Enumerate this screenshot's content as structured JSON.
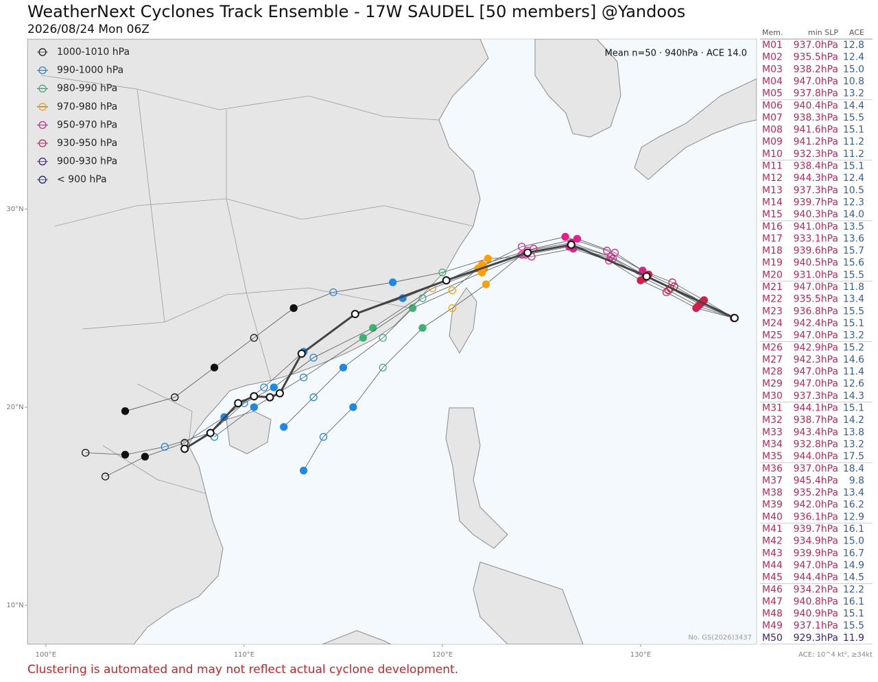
{
  "title": "WeatherNext Cyclones Track Ensemble - 17W SAUDEL [50 members] @Yandoos",
  "subtitle": "2026/08/24 Mon 06Z",
  "map": {
    "type": "map",
    "xlim": [
      99.07,
      135.85
    ],
    "ylim": [
      8.03,
      38.58
    ],
    "xticks": [
      {
        "value": 100,
        "label": "100°E"
      },
      {
        "value": 110,
        "label": "110°E"
      },
      {
        "value": 120,
        "label": "120°E"
      },
      {
        "value": 130,
        "label": "130°E"
      }
    ],
    "yticks": [
      {
        "value": 30,
        "label": "30°N"
      },
      {
        "value": 20,
        "label": "20°N"
      },
      {
        "value": 10,
        "label": "10°N"
      }
    ],
    "legend": [
      {
        "label": "1000-1010 hPa",
        "color": "#111111"
      },
      {
        "label": "990-1000 hPa",
        "color": "#1e88e5"
      },
      {
        "label": "980-990 hPa",
        "color": "#3cb371"
      },
      {
        "label": "970-980 hPa",
        "color": "#ffa000"
      },
      {
        "label": "950-970 hPa",
        "color": "#e91e8c"
      },
      {
        "label": "930-950 hPa",
        "color": "#d0204a"
      },
      {
        "label": "900-930 hPa",
        "color": "#3f1a8a"
      },
      {
        "label": "< 900 hPa",
        "color": "#1a237e"
      }
    ],
    "mean_label": "Mean n=50 · 940hPa · ACE 14.0",
    "watermark": "No. GS(2026)3437",
    "tracks": [
      {
        "lon": [
          134.7,
          133.0,
          131.5,
          130.3,
          128.5,
          126.5,
          124.3,
          122.0,
          120.2,
          118.0,
          115.6,
          113.0,
          111.0,
          109.0,
          107.0,
          105.0,
          103.0
        ],
        "lat": [
          24.5,
          25.2,
          26.0,
          26.6,
          27.6,
          28.3,
          27.9,
          27.2,
          26.4,
          25.5,
          24.7,
          22.8,
          21.0,
          19.5,
          18.2,
          17.5,
          16.5
        ],
        "colors": [
          "#e91e8c",
          "#d0204a",
          "#d0204a",
          "#d0204a",
          "#e91e8c",
          "#e91e8c",
          "#e91e8c",
          "#ffa000",
          "#3cb371",
          "#1e88e5",
          "#1e88e5",
          "#1e88e5",
          "#1e88e5",
          "#1e88e5",
          "#111111",
          "#111111",
          "#111111"
        ]
      },
      {
        "lon": [
          134.7,
          133.2,
          131.6,
          130.1,
          128.3,
          126.2,
          124.0,
          121.8,
          120.5,
          118.5,
          117.0,
          115.0,
          113.5,
          112.0
        ],
        "lat": [
          24.5,
          25.4,
          26.3,
          26.9,
          27.9,
          28.6,
          28.1,
          27.0,
          25.9,
          25.0,
          23.5,
          22.0,
          20.5,
          19.0
        ],
        "colors": [
          "#e91e8c",
          "#d0204a",
          "#d0204a",
          "#e91e8c",
          "#e91e8c",
          "#e91e8c",
          "#e91e8c",
          "#ffa000",
          "#ffa000",
          "#3cb371",
          "#3cb371",
          "#1e88e5",
          "#1e88e5",
          "#1e88e5"
        ]
      },
      {
        "lon": [
          134.7,
          132.8,
          131.3,
          130.0,
          128.4,
          126.6,
          124.5,
          122.3,
          120.0,
          117.5,
          114.5,
          112.5,
          110.5,
          108.5,
          106.5,
          104.0
        ],
        "lat": [
          24.5,
          25.0,
          25.8,
          26.4,
          27.4,
          28.0,
          27.6,
          27.5,
          26.8,
          26.3,
          25.8,
          25.0,
          23.5,
          22.0,
          20.5,
          19.8
        ],
        "colors": [
          "#e91e8c",
          "#d0204a",
          "#d0204a",
          "#d0204a",
          "#e91e8c",
          "#e91e8c",
          "#e91e8c",
          "#ffa000",
          "#3cb371",
          "#1e88e5",
          "#1e88e5",
          "#111111",
          "#111111",
          "#111111",
          "#111111",
          "#111111"
        ]
      },
      {
        "lon": [
          134.7,
          133.1,
          131.7,
          130.4,
          128.7,
          126.8,
          124.6,
          122.1,
          119.5,
          116.5,
          113.5,
          111.5,
          110.0,
          108.3,
          106.0,
          104.0,
          102.0
        ],
        "lat": [
          24.5,
          25.3,
          26.1,
          26.7,
          27.8,
          28.5,
          28.0,
          27.0,
          26.0,
          24.0,
          22.5,
          21.0,
          20.2,
          18.7,
          18.0,
          17.6,
          17.7
        ],
        "colors": [
          "#3f1a8a",
          "#d0204a",
          "#d0204a",
          "#d0204a",
          "#e91e8c",
          "#e91e8c",
          "#e91e8c",
          "#ffa000",
          "#ffa000",
          "#3cb371",
          "#1e88e5",
          "#1e88e5",
          "#1e88e5",
          "#1e88e5",
          "#1e88e5",
          "#111111",
          "#111111"
        ]
      },
      {
        "lon": [
          134.7,
          132.9,
          131.4,
          130.2,
          128.6,
          126.4,
          124.2,
          122.0,
          119.0,
          116.0,
          113.0,
          110.5,
          108.5
        ],
        "lat": [
          24.5,
          25.1,
          25.9,
          26.5,
          27.5,
          28.1,
          27.7,
          26.8,
          25.5,
          23.5,
          21.5,
          20.0,
          18.5
        ],
        "colors": [
          "#e91e8c",
          "#d0204a",
          "#d0204a",
          "#d0204a",
          "#e91e8c",
          "#e91e8c",
          "#e91e8c",
          "#ffa000",
          "#3cb371",
          "#3cb371",
          "#1e88e5",
          "#1e88e5",
          "#1e88e5"
        ]
      },
      {
        "lon": [
          134.7,
          133.0,
          131.5,
          130.3,
          128.5,
          126.5,
          124.0,
          122.2,
          120.5,
          119.0,
          117.0,
          115.5,
          114.0,
          113.0
        ],
        "lat": [
          24.5,
          25.2,
          26.0,
          26.6,
          27.6,
          28.2,
          27.7,
          26.2,
          25.0,
          24.0,
          22.0,
          20.0,
          18.5,
          16.8
        ],
        "colors": [
          "#e91e8c",
          "#d0204a",
          "#d0204a",
          "#d0204a",
          "#e91e8c",
          "#e91e8c",
          "#e91e8c",
          "#ffa000",
          "#ffa000",
          "#3cb371",
          "#3cb371",
          "#1e88e5",
          "#1e88e5",
          "#1e88e5"
        ]
      }
    ],
    "mean_track": {
      "lon": [
        134.74,
        130.3,
        126.5,
        124.3,
        120.2,
        115.6,
        112.9,
        111.8,
        111.3,
        110.5,
        109.7,
        108.3,
        107.0
      ],
      "lat": [
        24.5,
        26.6,
        28.2,
        27.8,
        26.4,
        24.7,
        22.7,
        20.7,
        20.5,
        20.55,
        20.2,
        18.7,
        17.9
      ]
    }
  },
  "table": {
    "headers": [
      "Mem.",
      "min SLP",
      "ACE"
    ],
    "color": "#c0245a",
    "ace_color": "#2f5f9e",
    "rows": [
      {
        "member": "M01",
        "min_slp": "937.0hPa",
        "ace": "12.8"
      },
      {
        "member": "M02",
        "min_slp": "935.5hPa",
        "ace": "12.4"
      },
      {
        "member": "M03",
        "min_slp": "938.2hPa",
        "ace": "15.0"
      },
      {
        "member": "M04",
        "min_slp": "947.0hPa",
        "ace": "10.8"
      },
      {
        "member": "M05",
        "min_slp": "937.8hPa",
        "ace": "13.2"
      },
      {
        "member": "M06",
        "min_slp": "940.4hPa",
        "ace": "14.4"
      },
      {
        "member": "M07",
        "min_slp": "938.3hPa",
        "ace": "15.5"
      },
      {
        "member": "M08",
        "min_slp": "941.6hPa",
        "ace": "15.1"
      },
      {
        "member": "M09",
        "min_slp": "941.2hPa",
        "ace": "11.2"
      },
      {
        "member": "M10",
        "min_slp": "932.3hPa",
        "ace": "11.2"
      },
      {
        "member": "M11",
        "min_slp": "938.4hPa",
        "ace": "15.1"
      },
      {
        "member": "M12",
        "min_slp": "944.3hPa",
        "ace": "12.4"
      },
      {
        "member": "M13",
        "min_slp": "937.3hPa",
        "ace": "10.5"
      },
      {
        "member": "M14",
        "min_slp": "939.7hPa",
        "ace": "12.3"
      },
      {
        "member": "M15",
        "min_slp": "940.3hPa",
        "ace": "14.0"
      },
      {
        "member": "M16",
        "min_slp": "941.0hPa",
        "ace": "13.5"
      },
      {
        "member": "M17",
        "min_slp": "933.1hPa",
        "ace": "13.6"
      },
      {
        "member": "M18",
        "min_slp": "939.6hPa",
        "ace": "15.7"
      },
      {
        "member": "M19",
        "min_slp": "940.5hPa",
        "ace": "15.6"
      },
      {
        "member": "M20",
        "min_slp": "931.0hPa",
        "ace": "15.5"
      },
      {
        "member": "M21",
        "min_slp": "947.0hPa",
        "ace": "11.8"
      },
      {
        "member": "M22",
        "min_slp": "935.5hPa",
        "ace": "13.4"
      },
      {
        "member": "M23",
        "min_slp": "936.8hPa",
        "ace": "15.5"
      },
      {
        "member": "M24",
        "min_slp": "942.4hPa",
        "ace": "15.1"
      },
      {
        "member": "M25",
        "min_slp": "947.0hPa",
        "ace": "13.2"
      },
      {
        "member": "M26",
        "min_slp": "942.9hPa",
        "ace": "15.2"
      },
      {
        "member": "M27",
        "min_slp": "942.3hPa",
        "ace": "14.6"
      },
      {
        "member": "M28",
        "min_slp": "947.0hPa",
        "ace": "11.4"
      },
      {
        "member": "M29",
        "min_slp": "947.0hPa",
        "ace": "12.6"
      },
      {
        "member": "M30",
        "min_slp": "937.3hPa",
        "ace": "14.3"
      },
      {
        "member": "M31",
        "min_slp": "944.1hPa",
        "ace": "15.1"
      },
      {
        "member": "M32",
        "min_slp": "938.7hPa",
        "ace": "14.2"
      },
      {
        "member": "M33",
        "min_slp": "943.4hPa",
        "ace": "13.8"
      },
      {
        "member": "M34",
        "min_slp": "932.8hPa",
        "ace": "13.2"
      },
      {
        "member": "M35",
        "min_slp": "944.0hPa",
        "ace": "17.5"
      },
      {
        "member": "M36",
        "min_slp": "937.0hPa",
        "ace": "18.4"
      },
      {
        "member": "M37",
        "min_slp": "945.4hPa",
        "ace": "9.8"
      },
      {
        "member": "M38",
        "min_slp": "935.2hPa",
        "ace": "13.4"
      },
      {
        "member": "M39",
        "min_slp": "942.0hPa",
        "ace": "16.2"
      },
      {
        "member": "M40",
        "min_slp": "936.1hPa",
        "ace": "12.9"
      },
      {
        "member": "M41",
        "min_slp": "939.7hPa",
        "ace": "16.1"
      },
      {
        "member": "M42",
        "min_slp": "934.9hPa",
        "ace": "15.0"
      },
      {
        "member": "M43",
        "min_slp": "939.9hPa",
        "ace": "16.7"
      },
      {
        "member": "M44",
        "min_slp": "947.0hPa",
        "ace": "14.9"
      },
      {
        "member": "M45",
        "min_slp": "944.4hPa",
        "ace": "14.5"
      },
      {
        "member": "M46",
        "min_slp": "934.2hPa",
        "ace": "12.2"
      },
      {
        "member": "M47",
        "min_slp": "940.8hPa",
        "ace": "16.1"
      },
      {
        "member": "M48",
        "min_slp": "940.9hPa",
        "ace": "15.1"
      },
      {
        "member": "M49",
        "min_slp": "937.1hPa",
        "ace": "15.5"
      },
      {
        "member": "M50",
        "min_slp": "929.3hPa",
        "ace": "11.9",
        "color": "#3b1f7a"
      }
    ],
    "note": "ACE: 10^4 kt², ≥34kt"
  },
  "footer": "Clustering is automated and may not reflect actual cyclone development."
}
